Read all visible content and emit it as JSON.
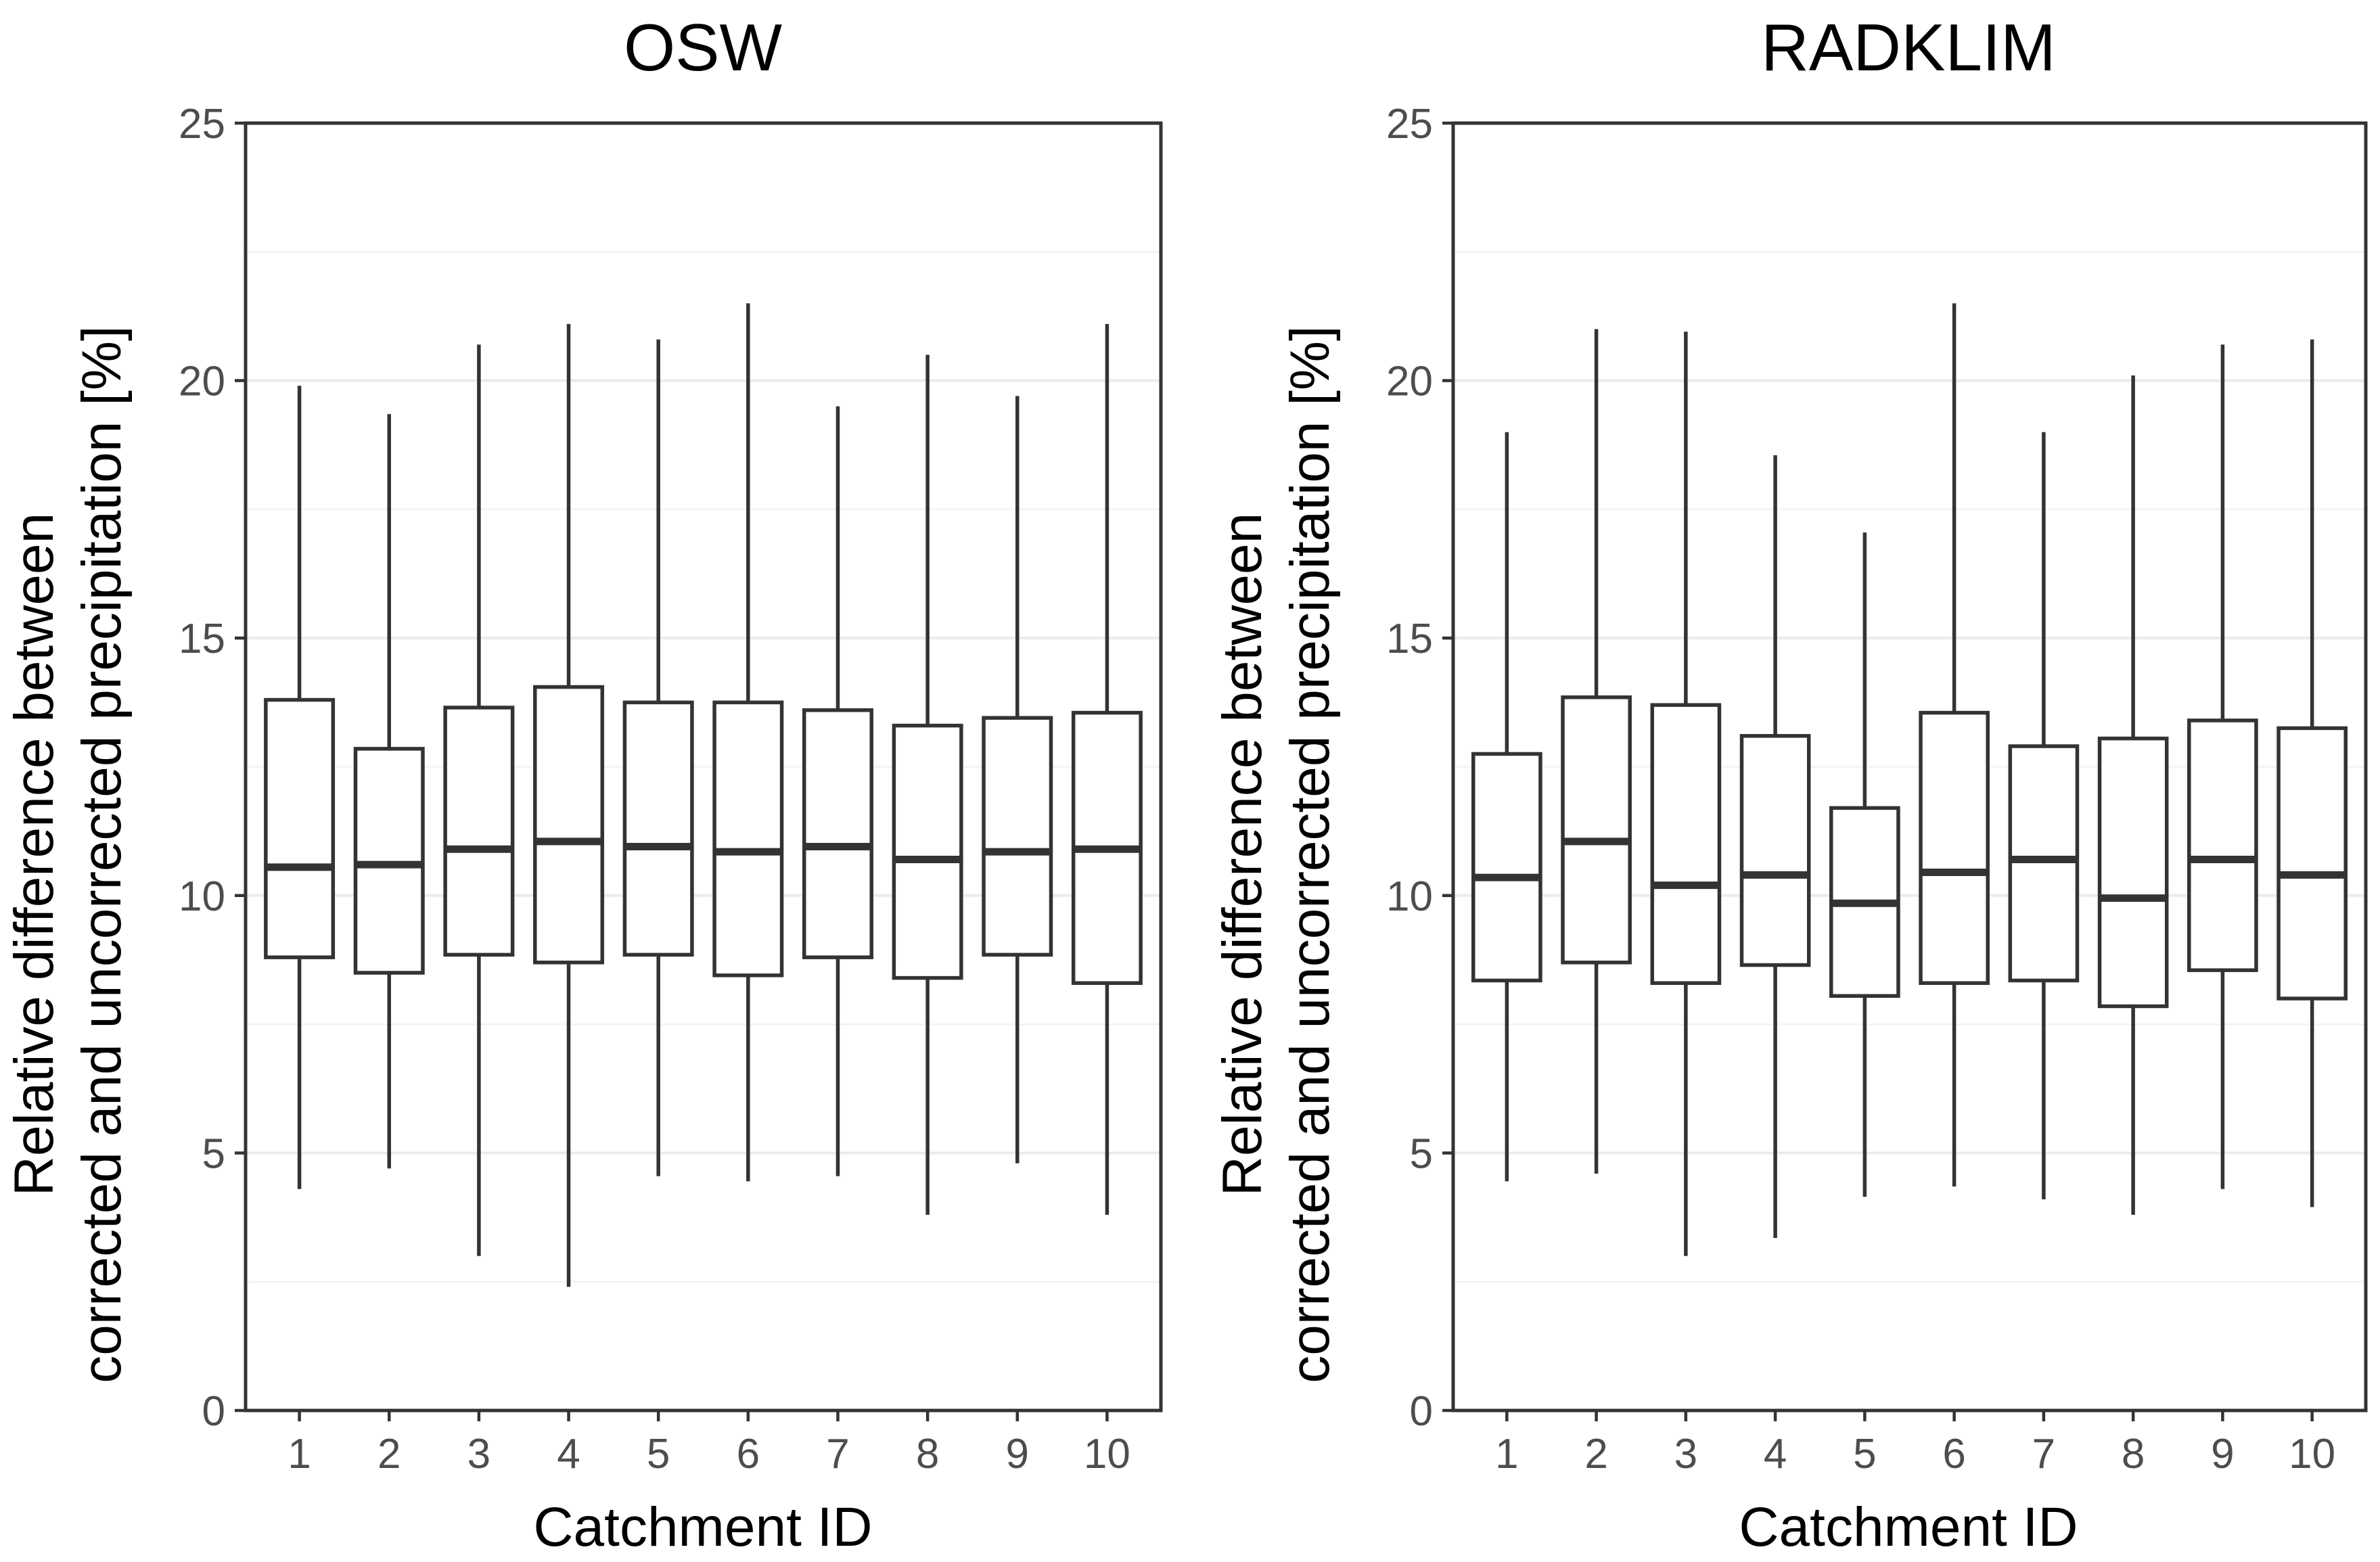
{
  "chart_data": [
    {
      "type": "boxplot",
      "title": "OSW",
      "xlabel": "Catchment ID",
      "ylabel": [
        "Relative difference between",
        "corrected and uncorrected precipitation [%]"
      ],
      "ylim": [
        0,
        25
      ],
      "yticks": [
        "0",
        "5",
        "10",
        "15",
        "20",
        "25"
      ],
      "yticks_values": [
        0,
        5,
        10,
        15,
        20,
        25
      ],
      "categories": [
        "1",
        "2",
        "3",
        "4",
        "5",
        "6",
        "7",
        "8",
        "9",
        "10"
      ],
      "grid": true,
      "boxes": [
        {
          "id": "1",
          "whisker_low": 4.3,
          "q1": 8.8,
          "median": 10.55,
          "q3": 13.8,
          "whisker_high": 19.9
        },
        {
          "id": "2",
          "whisker_low": 4.7,
          "q1": 8.5,
          "median": 10.6,
          "q3": 12.85,
          "whisker_high": 19.35
        },
        {
          "id": "3",
          "whisker_low": 3.0,
          "q1": 8.85,
          "median": 10.9,
          "q3": 13.65,
          "whisker_high": 20.7
        },
        {
          "id": "4",
          "whisker_low": 2.4,
          "q1": 8.7,
          "median": 11.05,
          "q3": 14.05,
          "whisker_high": 21.1
        },
        {
          "id": "5",
          "whisker_low": 4.55,
          "q1": 8.85,
          "median": 10.95,
          "q3": 13.75,
          "whisker_high": 20.8
        },
        {
          "id": "6",
          "whisker_low": 4.45,
          "q1": 8.45,
          "median": 10.85,
          "q3": 13.75,
          "whisker_high": 21.5
        },
        {
          "id": "7",
          "whisker_low": 4.55,
          "q1": 8.8,
          "median": 10.95,
          "q3": 13.6,
          "whisker_high": 19.5
        },
        {
          "id": "8",
          "whisker_low": 3.8,
          "q1": 8.4,
          "median": 10.7,
          "q3": 13.3,
          "whisker_high": 20.5
        },
        {
          "id": "9",
          "whisker_low": 4.8,
          "q1": 8.85,
          "median": 10.85,
          "q3": 13.45,
          "whisker_high": 19.7
        },
        {
          "id": "10",
          "whisker_low": 3.8,
          "q1": 8.3,
          "median": 10.9,
          "q3": 13.55,
          "whisker_high": 21.1
        }
      ]
    },
    {
      "type": "boxplot",
      "title": "RADKLIM",
      "xlabel": "Catchment ID",
      "ylabel": [
        "Relative difference between",
        "corrected and uncorrected precipitation [%]"
      ],
      "ylim": [
        0,
        25
      ],
      "yticks": [
        "0",
        "5",
        "10",
        "15",
        "20",
        "25"
      ],
      "yticks_values": [
        0,
        5,
        10,
        15,
        20,
        25
      ],
      "categories": [
        "1",
        "2",
        "3",
        "4",
        "5",
        "6",
        "7",
        "8",
        "9",
        "10"
      ],
      "grid": true,
      "boxes": [
        {
          "id": "1",
          "whisker_low": 4.45,
          "q1": 8.35,
          "median": 10.35,
          "q3": 12.75,
          "whisker_high": 19.0
        },
        {
          "id": "2",
          "whisker_low": 4.6,
          "q1": 8.7,
          "median": 11.05,
          "q3": 13.85,
          "whisker_high": 21.0
        },
        {
          "id": "3",
          "whisker_low": 3.0,
          "q1": 8.3,
          "median": 10.2,
          "q3": 13.7,
          "whisker_high": 20.95
        },
        {
          "id": "4",
          "whisker_low": 3.35,
          "q1": 8.65,
          "median": 10.4,
          "q3": 13.1,
          "whisker_high": 18.55
        },
        {
          "id": "5",
          "whisker_low": 4.15,
          "q1": 8.05,
          "median": 9.85,
          "q3": 11.7,
          "whisker_high": 17.05
        },
        {
          "id": "6",
          "whisker_low": 4.35,
          "q1": 8.3,
          "median": 10.45,
          "q3": 13.55,
          "whisker_high": 21.5
        },
        {
          "id": "7",
          "whisker_low": 4.1,
          "q1": 8.35,
          "median": 10.7,
          "q3": 12.9,
          "whisker_high": 19.0
        },
        {
          "id": "8",
          "whisker_low": 3.8,
          "q1": 7.85,
          "median": 9.95,
          "q3": 13.05,
          "whisker_high": 20.1
        },
        {
          "id": "9",
          "whisker_low": 4.3,
          "q1": 8.55,
          "median": 10.7,
          "q3": 13.4,
          "whisker_high": 20.7
        },
        {
          "id": "10",
          "whisker_low": 3.95,
          "q1": 8.0,
          "median": 10.4,
          "q3": 13.25,
          "whisker_high": 20.8
        }
      ]
    }
  ]
}
